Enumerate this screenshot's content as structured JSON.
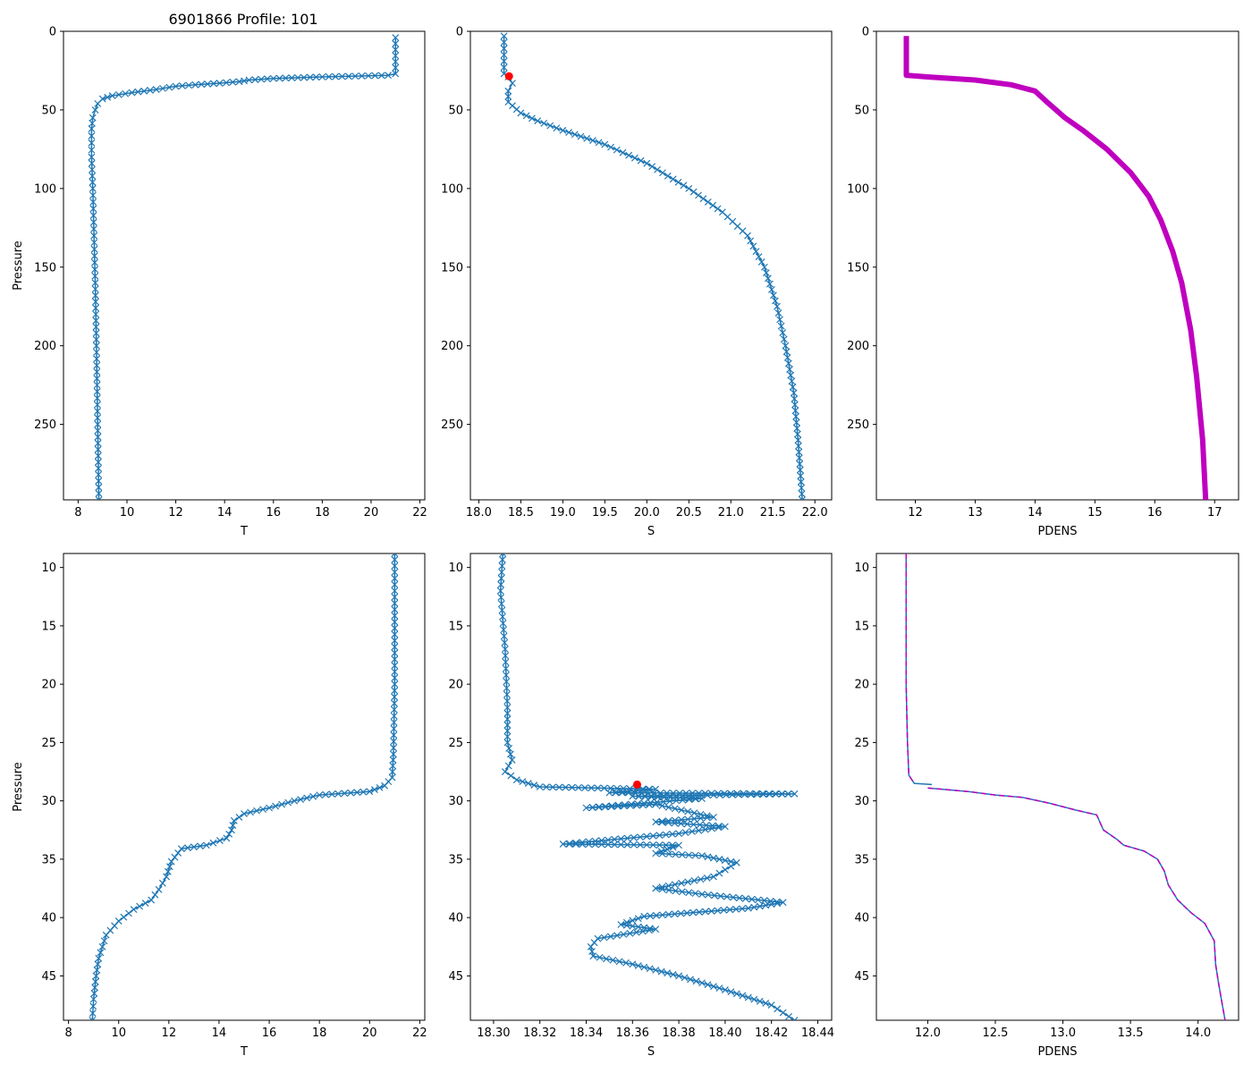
{
  "figure": {
    "title": "6901866 Profile: 101",
    "colors": {
      "series": "#1f77b4",
      "density": "#bf00bf",
      "marker": "#ff0000",
      "axis": "#000000"
    }
  },
  "chart_data": [
    {
      "id": "top-temperature",
      "type": "line",
      "title": "6901866 Profile: 101",
      "xlabel": "T",
      "ylabel": "Pressure",
      "xlim": [
        7.4,
        22.2
      ],
      "ylim": [
        298,
        0
      ],
      "xticks": [
        8,
        10,
        12,
        14,
        16,
        18,
        20,
        22
      ],
      "yticks": [
        0,
        50,
        100,
        150,
        200,
        250
      ],
      "series": [
        {
          "name": "T",
          "marker": "x",
          "points": [
            [
              21.0,
              4
            ],
            [
              21.0,
              27
            ],
            [
              20.7,
              28
            ],
            [
              18.0,
              29
            ],
            [
              16.0,
              30
            ],
            [
              15.0,
              31
            ],
            [
              14.6,
              32
            ],
            [
              13.8,
              33
            ],
            [
              12.8,
              34
            ],
            [
              12.0,
              35
            ],
            [
              11.2,
              37
            ],
            [
              10.2,
              39
            ],
            [
              9.4,
              41
            ],
            [
              9.0,
              43
            ],
            [
              8.8,
              46
            ],
            [
              8.7,
              50
            ],
            [
              8.6,
              55
            ],
            [
              8.55,
              62
            ],
            [
              8.55,
              80
            ],
            [
              8.6,
              100
            ],
            [
              8.65,
              130
            ],
            [
              8.7,
              160
            ],
            [
              8.75,
              200
            ],
            [
              8.8,
              250
            ],
            [
              8.85,
              298
            ]
          ]
        }
      ]
    },
    {
      "id": "top-salinity",
      "type": "line",
      "xlabel": "S",
      "ylabel": "",
      "xlim": [
        17.9,
        22.2
      ],
      "ylim": [
        298,
        0
      ],
      "xticks": [
        18.0,
        18.5,
        19.0,
        19.5,
        20.0,
        20.5,
        21.0,
        21.5,
        22.0
      ],
      "xtick_labels": [
        "18.0",
        "18.5",
        "19.0",
        "19.5",
        "20.0",
        "20.5",
        "21.0",
        "21.5",
        "22.0"
      ],
      "yticks": [
        0,
        50,
        100,
        150,
        200,
        250
      ],
      "series": [
        {
          "name": "S",
          "marker": "x",
          "points": [
            [
              18.3,
              3
            ],
            [
              18.3,
              27
            ],
            [
              18.35,
              29
            ],
            [
              18.4,
              33
            ],
            [
              18.35,
              38
            ],
            [
              18.35,
              45
            ],
            [
              18.5,
              52
            ],
            [
              18.7,
              57
            ],
            [
              19.0,
              63
            ],
            [
              19.5,
              72
            ],
            [
              20.0,
              84
            ],
            [
              20.5,
              100
            ],
            [
              20.9,
              115
            ],
            [
              21.2,
              130
            ],
            [
              21.4,
              150
            ],
            [
              21.55,
              175
            ],
            [
              21.65,
              200
            ],
            [
              21.75,
              230
            ],
            [
              21.8,
              260
            ],
            [
              21.85,
              298
            ]
          ]
        }
      ],
      "highlight_point": [
        18.36,
        28.6
      ]
    },
    {
      "id": "top-density",
      "type": "line",
      "xlabel": "PDENS",
      "ylabel": "",
      "xlim": [
        11.35,
        17.4
      ],
      "ylim": [
        298,
        0
      ],
      "xticks": [
        12,
        13,
        14,
        15,
        16,
        17
      ],
      "yticks": [
        0,
        50,
        100,
        150,
        200,
        250
      ],
      "series": [
        {
          "name": "PDENS",
          "marker": "triangle",
          "points": [
            [
              11.85,
              3
            ],
            [
              11.85,
              28
            ],
            [
              12.2,
              29
            ],
            [
              13.0,
              31
            ],
            [
              13.6,
              34
            ],
            [
              14.0,
              38
            ],
            [
              14.2,
              45
            ],
            [
              14.5,
              55
            ],
            [
              14.8,
              63
            ],
            [
              15.2,
              75
            ],
            [
              15.6,
              90
            ],
            [
              15.9,
              105
            ],
            [
              16.1,
              120
            ],
            [
              16.3,
              140
            ],
            [
              16.45,
              160
            ],
            [
              16.6,
              190
            ],
            [
              16.7,
              220
            ],
            [
              16.8,
              260
            ],
            [
              16.85,
              298
            ]
          ]
        }
      ]
    },
    {
      "id": "bottom-temperature",
      "type": "line",
      "xlabel": "T",
      "ylabel": "Pressure",
      "xlim": [
        7.8,
        22.2
      ],
      "ylim": [
        48.8,
        8.8
      ],
      "xticks": [
        8,
        10,
        12,
        14,
        16,
        18,
        20,
        22
      ],
      "yticks": [
        10,
        15,
        20,
        25,
        30,
        35,
        40,
        45
      ],
      "series": [
        {
          "name": "T",
          "marker": "x",
          "points": [
            [
              21.0,
              8.8
            ],
            [
              21.0,
              20
            ],
            [
              20.95,
              26
            ],
            [
              20.9,
              28
            ],
            [
              20.6,
              28.7
            ],
            [
              20.0,
              29.2
            ],
            [
              18.0,
              29.5
            ],
            [
              17.0,
              30
            ],
            [
              16.0,
              30.6
            ],
            [
              15.0,
              31.1
            ],
            [
              14.6,
              31.7
            ],
            [
              14.5,
              32.5
            ],
            [
              14.3,
              33.2
            ],
            [
              13.5,
              33.8
            ],
            [
              12.5,
              34.1
            ],
            [
              12.1,
              35.2
            ],
            [
              11.9,
              36.5
            ],
            [
              11.6,
              37.6
            ],
            [
              11.3,
              38.5
            ],
            [
              10.6,
              39.3
            ],
            [
              10.0,
              40.3
            ],
            [
              9.5,
              41.5
            ],
            [
              9.2,
              43.5
            ],
            [
              9.1,
              45
            ],
            [
              9.0,
              47
            ],
            [
              8.95,
              48.8
            ]
          ]
        }
      ]
    },
    {
      "id": "bottom-salinity",
      "type": "line",
      "xlabel": "S",
      "ylabel": "",
      "xlim": [
        18.29,
        18.446
      ],
      "ylim": [
        48.8,
        8.8
      ],
      "xticks": [
        18.3,
        18.32,
        18.34,
        18.36,
        18.38,
        18.4,
        18.42,
        18.44
      ],
      "xtick_labels": [
        "18.30",
        "18.32",
        "18.34",
        "18.36",
        "18.38",
        "18.40",
        "18.42",
        "18.44"
      ],
      "yticks": [
        10,
        15,
        20,
        25,
        30,
        35,
        40,
        45
      ],
      "series": [
        {
          "name": "S",
          "marker": "x",
          "points": [
            [
              18.304,
              8.8
            ],
            [
              18.303,
              12
            ],
            [
              18.305,
              17
            ],
            [
              18.306,
              22
            ],
            [
              18.306,
              25
            ],
            [
              18.308,
              26.5
            ],
            [
              18.305,
              27.5
            ],
            [
              18.31,
              28.2
            ],
            [
              18.32,
              28.8
            ],
            [
              18.37,
              29.0
            ],
            [
              18.35,
              29.3
            ],
            [
              18.43,
              29.4
            ],
            [
              18.36,
              29.6
            ],
            [
              18.39,
              29.8
            ],
            [
              18.34,
              30.6
            ],
            [
              18.37,
              30.3
            ],
            [
              18.395,
              31.4
            ],
            [
              18.37,
              31.8
            ],
            [
              18.4,
              32.2
            ],
            [
              18.38,
              32.8
            ],
            [
              18.33,
              33.7
            ],
            [
              18.38,
              33.8
            ],
            [
              18.37,
              34.5
            ],
            [
              18.39,
              34.7
            ],
            [
              18.405,
              35.3
            ],
            [
              18.395,
              36.5
            ],
            [
              18.37,
              37.5
            ],
            [
              18.39,
              38.0
            ],
            [
              18.425,
              38.7
            ],
            [
              18.41,
              39.2
            ],
            [
              18.365,
              39.9
            ],
            [
              18.355,
              40.6
            ],
            [
              18.37,
              41.0
            ],
            [
              18.345,
              41.8
            ],
            [
              18.342,
              42.5
            ],
            [
              18.343,
              43.3
            ],
            [
              18.36,
              44.0
            ],
            [
              18.38,
              45.0
            ],
            [
              18.4,
              46.2
            ],
            [
              18.42,
              47.5
            ],
            [
              18.43,
              48.8
            ]
          ]
        }
      ],
      "highlight_point": [
        18.362,
        28.6
      ]
    },
    {
      "id": "bottom-density",
      "type": "line",
      "xlabel": "PDENS",
      "ylabel": "",
      "xlim": [
        11.62,
        14.3
      ],
      "ylim": [
        48.8,
        8.8
      ],
      "xticks": [
        12.0,
        12.5,
        13.0,
        13.5,
        14.0
      ],
      "xtick_labels": [
        "12.0",
        "12.5",
        "13.0",
        "13.5",
        "14.0"
      ],
      "yticks": [
        10,
        15,
        20,
        25,
        30,
        35,
        40,
        45
      ],
      "series": [
        {
          "name": "PDENS",
          "line_style": "solid",
          "points": [
            [
              11.84,
              8.8
            ],
            [
              11.84,
              20
            ],
            [
              11.85,
              25
            ],
            [
              11.86,
              27.8
            ],
            [
              11.9,
              28.5
            ],
            [
              12.03,
              28.6
            ]
          ]
        },
        {
          "name": "PDENS",
          "line_style": "dashed",
          "points": [
            [
              11.84,
              8.8
            ],
            [
              11.84,
              20
            ],
            [
              11.85,
              25
            ],
            [
              11.86,
              27.8
            ],
            [
              11.9,
              28.5
            ]
          ]
        },
        {
          "name": "PDENS",
          "line_style": "solid",
          "points": [
            [
              12.0,
              28.9
            ],
            [
              12.3,
              29.2
            ],
            [
              12.5,
              29.5
            ],
            [
              12.7,
              29.7
            ],
            [
              12.9,
              30.2
            ],
            [
              13.1,
              30.8
            ],
            [
              13.25,
              31.2
            ],
            [
              13.3,
              32.5
            ],
            [
              13.4,
              33.3
            ],
            [
              13.45,
              33.8
            ],
            [
              13.6,
              34.3
            ],
            [
              13.7,
              35.0
            ],
            [
              13.75,
              36.0
            ],
            [
              13.78,
              37.2
            ],
            [
              13.85,
              38.5
            ],
            [
              13.95,
              39.6
            ],
            [
              14.05,
              40.5
            ],
            [
              14.12,
              42.0
            ],
            [
              14.13,
              44.0
            ],
            [
              14.15,
              45.5
            ],
            [
              14.18,
              47.5
            ],
            [
              14.2,
              48.8
            ]
          ]
        },
        {
          "name": "PDENS",
          "line_style": "dashed",
          "points": [
            [
              12.0,
              28.9
            ],
            [
              12.3,
              29.2
            ],
            [
              12.5,
              29.5
            ],
            [
              12.7,
              29.7
            ],
            [
              12.9,
              30.2
            ],
            [
              13.1,
              30.8
            ],
            [
              13.25,
              31.2
            ],
            [
              13.3,
              32.5
            ],
            [
              13.4,
              33.3
            ],
            [
              13.45,
              33.8
            ],
            [
              13.6,
              34.3
            ],
            [
              13.7,
              35.0
            ],
            [
              13.75,
              36.0
            ],
            [
              13.78,
              37.2
            ],
            [
              13.85,
              38.5
            ],
            [
              13.95,
              39.6
            ],
            [
              14.05,
              40.5
            ],
            [
              14.12,
              42.0
            ],
            [
              14.13,
              44.0
            ],
            [
              14.15,
              45.5
            ],
            [
              14.18,
              47.5
            ],
            [
              14.2,
              48.8
            ]
          ]
        }
      ]
    }
  ]
}
